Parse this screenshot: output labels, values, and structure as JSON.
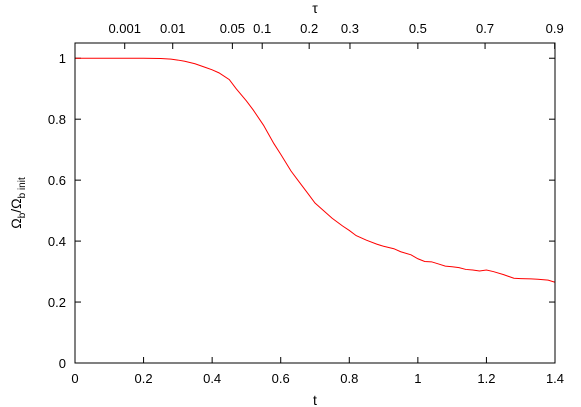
{
  "chart_data": {
    "type": "line",
    "xlabel": "t",
    "ylabel_main": "Ω",
    "ylabel_sub1": "b",
    "ylabel_sep": "/Ω",
    "ylabel_sub2": "b init",
    "x2label": "τ",
    "xlim": [
      0,
      1.4
    ],
    "ylim": [
      0,
      1.05
    ],
    "xticks": [
      0,
      0.2,
      0.4,
      0.6,
      0.8,
      1,
      1.2,
      1.4
    ],
    "xtick_labels": [
      "0",
      "0.2",
      "0.4",
      "0.6",
      "0.8",
      "1",
      "1.2",
      "1.4"
    ],
    "yticks": [
      0,
      0.2,
      0.4,
      0.6,
      0.8,
      1
    ],
    "ytick_labels": [
      "0",
      "0.2",
      "0.4",
      "0.6",
      "0.8",
      "1"
    ],
    "top_ticks": [
      {
        "label": "0.001",
        "t": 0.145
      },
      {
        "label": "0.01",
        "t": 0.285
      },
      {
        "label": "0.05",
        "t": 0.459
      },
      {
        "label": "0.1",
        "t": 0.546
      },
      {
        "label": "0.2",
        "t": 0.683
      },
      {
        "label": "0.3",
        "t": 0.802
      },
      {
        "label": "0.5",
        "t": 1.0
      },
      {
        "label": "0.7",
        "t": 1.196
      },
      {
        "label": "0.9",
        "t": 1.399
      }
    ],
    "grid": false,
    "series": [
      {
        "color": "#ff0000",
        "x": [
          0,
          0.05,
          0.1,
          0.15,
          0.2,
          0.25,
          0.28,
          0.3,
          0.32,
          0.35,
          0.38,
          0.4,
          0.42,
          0.45,
          0.47,
          0.5,
          0.52,
          0.55,
          0.58,
          0.6,
          0.63,
          0.65,
          0.68,
          0.7,
          0.72,
          0.75,
          0.78,
          0.8,
          0.82,
          0.85,
          0.88,
          0.9,
          0.93,
          0.95,
          0.98,
          1.0,
          1.02,
          1.04,
          1.06,
          1.08,
          1.1,
          1.12,
          1.14,
          1.16,
          1.18,
          1.2,
          1.22,
          1.25,
          1.28,
          1.3,
          1.33,
          1.35,
          1.38,
          1.4
        ],
        "y": [
          1.0,
          1.0,
          1.0,
          1.0,
          1.0,
          0.999,
          0.997,
          0.994,
          0.99,
          0.982,
          0.97,
          0.962,
          0.952,
          0.93,
          0.9,
          0.86,
          0.83,
          0.78,
          0.72,
          0.685,
          0.63,
          0.6,
          0.555,
          0.525,
          0.505,
          0.475,
          0.45,
          0.435,
          0.418,
          0.403,
          0.39,
          0.383,
          0.375,
          0.365,
          0.355,
          0.342,
          0.333,
          0.332,
          0.325,
          0.318,
          0.316,
          0.313,
          0.307,
          0.305,
          0.302,
          0.305,
          0.3,
          0.29,
          0.278,
          0.277,
          0.276,
          0.275,
          0.272,
          0.265
        ]
      }
    ]
  }
}
